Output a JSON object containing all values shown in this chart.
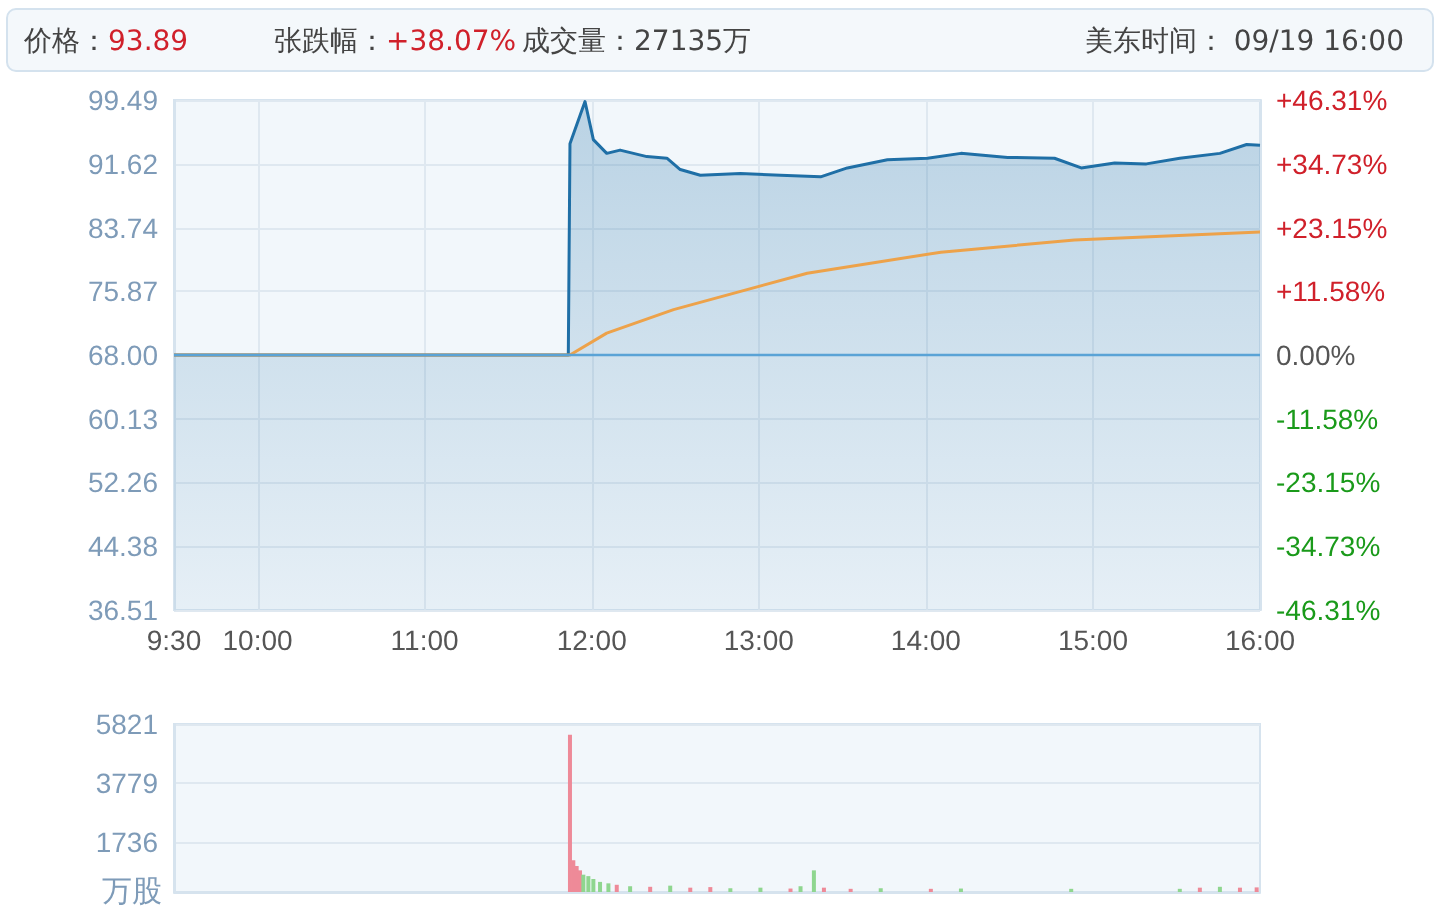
{
  "chart_data": [
    {
      "type": "area",
      "annotations": [
        "价格：93.89",
        "张跌幅：+38.07%",
        "成交量：27135万",
        "美东时间： 09/19 16:00"
      ],
      "xlim": [
        9.5,
        16
      ],
      "xticks": [
        {
          "value": 9.5,
          "label": "9:30"
        },
        {
          "value": 10,
          "label": "10:00"
        },
        {
          "value": 11,
          "label": "11:00"
        },
        {
          "value": 12,
          "label": "12:00"
        },
        {
          "value": 13,
          "label": "13:00"
        },
        {
          "value": 14,
          "label": "14:00"
        },
        {
          "value": 15,
          "label": "15:00"
        },
        {
          "value": 16,
          "label": "16:00"
        }
      ],
      "ylim": [
        36.51,
        99.49
      ],
      "yticks": [
        36.51,
        44.38,
        52.26,
        60.13,
        {
          "value": 68,
          "label": "68.00"
        },
        75.87,
        83.74,
        91.62,
        99.49
      ],
      "y2lim": [
        -46.31,
        46.31
      ],
      "y2ticks": [
        {
          "value": -46.31,
          "label": "-46.31%"
        },
        {
          "value": -34.73,
          "label": "-34.73%"
        },
        {
          "value": -23.15,
          "label": "-23.15%"
        },
        {
          "value": -11.58,
          "label": "-11.58%"
        },
        {
          "value": 0,
          "label": "0.00%"
        },
        {
          "value": 11.58,
          "label": "+11.58%"
        },
        {
          "value": 23.15,
          "label": "+23.15%"
        },
        {
          "value": 34.73,
          "label": "+34.73%"
        },
        {
          "value": 46.31,
          "label": "+46.31%"
        }
      ],
      "grid": true,
      "ref_lines": [
        {
          "axis": "y",
          "value": 68,
          "color": "#5aa3d6"
        }
      ],
      "series": [
        {
          "color": "#1f6fa6",
          "x": [
            9.5,
            11.86,
            11.87,
            11.96,
            12.01,
            12.09,
            12.17,
            12.33,
            12.45,
            12.53,
            12.65,
            12.89,
            13.13,
            13.37,
            13.53,
            13.77,
            14.01,
            14.21,
            14.49,
            14.77,
            14.93,
            15.13,
            15.32,
            15.52,
            15.76,
            15.92,
            16
          ],
          "values": [
            68,
            68,
            94.1,
            99.3,
            94.6,
            92.9,
            93.3,
            92.5,
            92.3,
            90.9,
            90.2,
            90.4,
            90.2,
            90.0,
            91.1,
            92.1,
            92.3,
            92.9,
            92.4,
            92.3,
            91.1,
            91.7,
            91.6,
            92.3,
            92.9,
            94.0,
            93.9
          ]
        },
        {
          "type": "line",
          "color": "#eda24a",
          "x": [
            9.5,
            11.87,
            12.09,
            12.49,
            13.29,
            14.09,
            14.89,
            16
          ],
          "values": [
            68,
            68,
            70.7,
            73.6,
            78.1,
            80.7,
            82.2,
            83.2
          ]
        }
      ]
    },
    {
      "type": "bar",
      "xlim": [
        9.5,
        16
      ],
      "ylim": [
        0,
        5821
      ],
      "yticks": [
        1736,
        3779,
        5821
      ],
      "ylabel": "万股",
      "tick_labels": "y",
      "grid": "y",
      "x": [
        11.87,
        11.89,
        11.91,
        11.93,
        11.95,
        11.98,
        12.01,
        12.05,
        12.1,
        12.15,
        12.23,
        12.35,
        12.47,
        12.59,
        12.71,
        12.83,
        13.01,
        13.19,
        13.25,
        13.33,
        13.39,
        13.55,
        13.73,
        14.03,
        14.21,
        14.87,
        15.52,
        15.64,
        15.76,
        15.88,
        15.98
      ],
      "values": [
        5450,
        1100,
        900,
        750,
        600,
        550,
        450,
        350,
        300,
        250,
        200,
        180,
        220,
        150,
        170,
        130,
        150,
        120,
        200,
        750,
        150,
        110,
        130,
        110,
        120,
        110,
        110,
        150,
        180,
        150,
        160
      ],
      "colors": [
        "#ee8a98",
        "#ee8a98",
        "#ee8a98",
        "#ee8a98",
        "#8fd68f",
        "#8fd68f",
        "#8fd68f",
        "#8fd68f",
        "#8fd68f",
        "#ee8a98",
        "#8fd68f",
        "#ee8a98",
        "#8fd68f",
        "#ee8a98",
        "#ee8a98",
        "#8fd68f",
        "#8fd68f",
        "#ee8a98",
        "#8fd68f",
        "#8fd68f",
        "#ee8a98",
        "#ee8a98",
        "#8fd68f",
        "#ee8a98",
        "#8fd68f",
        "#8fd68f",
        "#8fd68f",
        "#ee8a98",
        "#8fd68f",
        "#ee8a98",
        "#ee8a98"
      ]
    }
  ]
}
